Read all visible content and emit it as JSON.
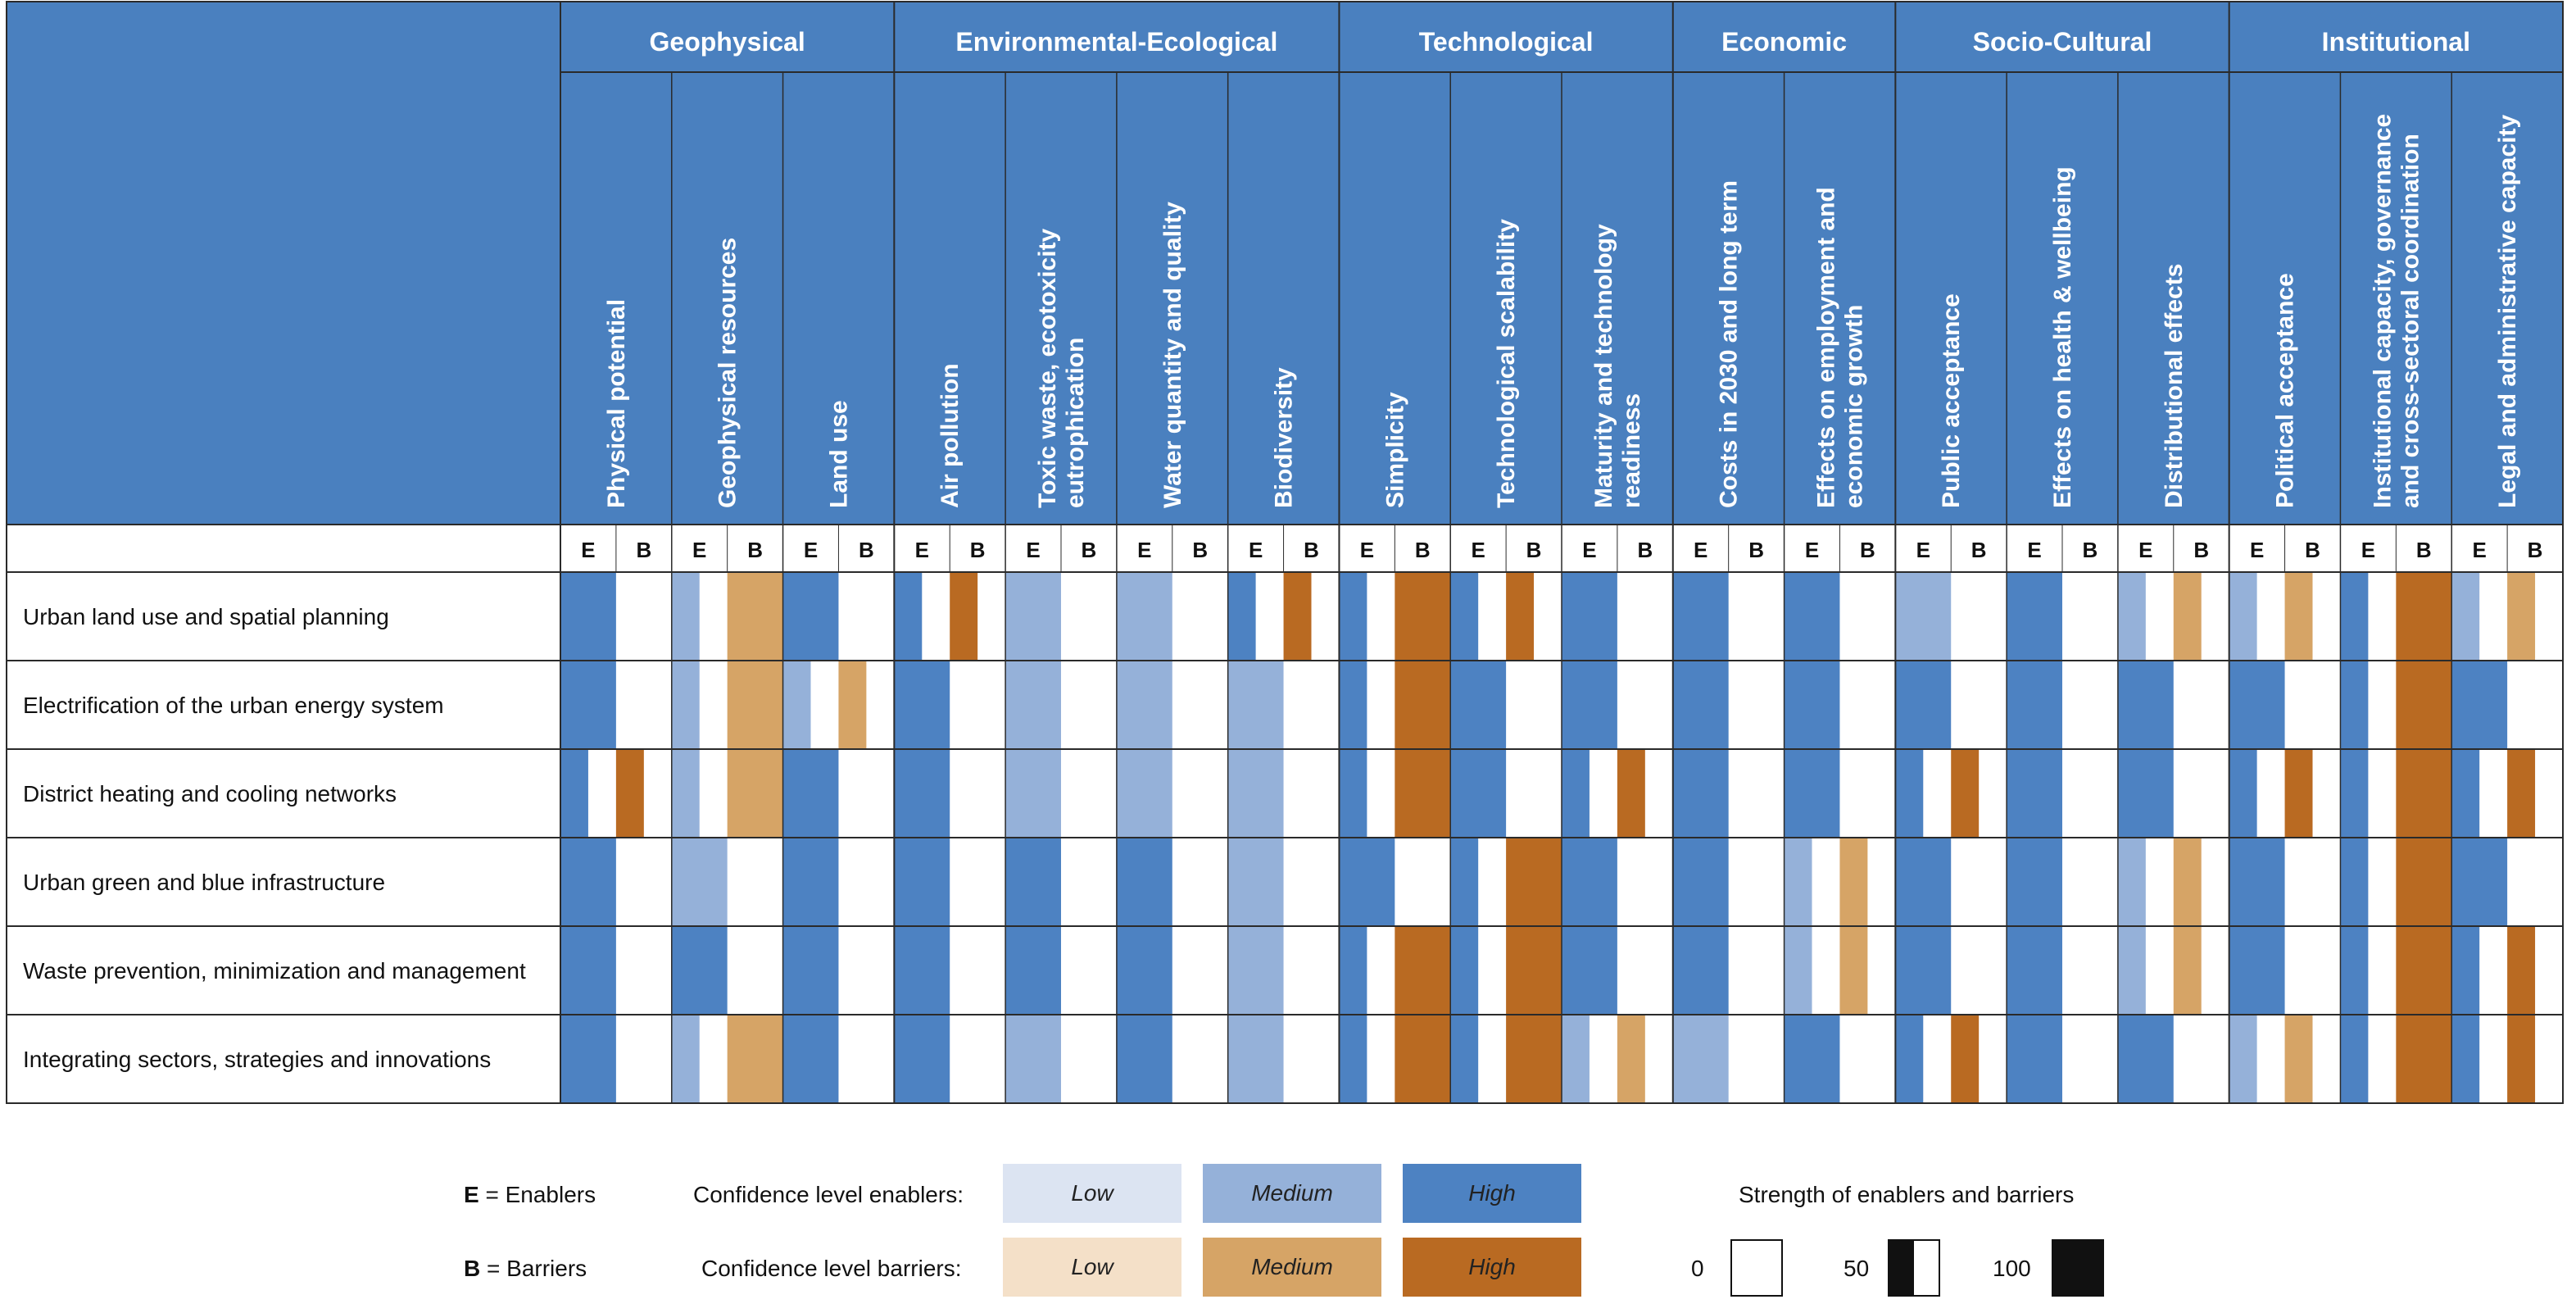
{
  "groups": [
    {
      "name": "Geophysical",
      "span": 3
    },
    {
      "name": "Environmental-Ecological",
      "span": 4
    },
    {
      "name": "Technological",
      "span": 3
    },
    {
      "name": "Economic",
      "span": 2
    },
    {
      "name": "Socio-Cultural",
      "span": 3
    },
    {
      "name": "Institutional",
      "span": 3
    }
  ],
  "columns": [
    [
      "Physical potential"
    ],
    [
      "Geophysical resources"
    ],
    [
      "Land use"
    ],
    [
      "Air pollution"
    ],
    [
      "Toxic waste, ecotoxicity",
      "eutrophication"
    ],
    [
      "Water quantity and quality"
    ],
    [
      "Biodiversity"
    ],
    [
      "Simplicity"
    ],
    [
      "Technological scalability"
    ],
    [
      "Maturity and technology",
      "readiness"
    ],
    [
      "Costs in 2030 and long term"
    ],
    [
      "Effects on employment and",
      "economic growth"
    ],
    [
      "Public acceptance"
    ],
    [
      "Effects on health & wellbeing"
    ],
    [
      "Distributional effects"
    ],
    [
      "Political acceptance"
    ],
    [
      "Institutional capacity, governance",
      "and cross-sectoral coordination"
    ],
    [
      "Legal and administrative capacity"
    ]
  ],
  "eb_labels": {
    "e": "E",
    "b": "B"
  },
  "rows": [
    "Urban land use and spatial planning",
    "Electrification of the urban energy system",
    "District heating and cooling networks",
    "Urban green and blue infrastructure",
    "Waste prevention, minimization and management",
    "Integrating sectors, strategies and innovations"
  ],
  "cells_note": "each cell: [enabler_strength(0|50|100), enabler_confidence(L|M|H|-), barrier_strength, barrier_confidence]",
  "cells": [
    [
      [
        100,
        "H",
        0,
        "-"
      ],
      [
        50,
        "M",
        100,
        "M"
      ],
      [
        100,
        "H",
        0,
        "-"
      ],
      [
        50,
        "H",
        50,
        "H"
      ],
      [
        100,
        "M",
        0,
        "-"
      ],
      [
        100,
        "M",
        0,
        "-"
      ],
      [
        50,
        "H",
        50,
        "H"
      ],
      [
        50,
        "H",
        100,
        "H"
      ],
      [
        50,
        "H",
        50,
        "H"
      ],
      [
        100,
        "H",
        0,
        "-"
      ],
      [
        100,
        "H",
        0,
        "-"
      ],
      [
        100,
        "H",
        0,
        "-"
      ],
      [
        100,
        "M",
        0,
        "-"
      ],
      [
        100,
        "H",
        0,
        "-"
      ],
      [
        50,
        "M",
        50,
        "M"
      ],
      [
        50,
        "M",
        50,
        "M"
      ],
      [
        50,
        "H",
        100,
        "H"
      ],
      [
        50,
        "M",
        50,
        "M"
      ]
    ],
    [
      [
        100,
        "H",
        0,
        "-"
      ],
      [
        50,
        "M",
        100,
        "M"
      ],
      [
        50,
        "M",
        50,
        "M"
      ],
      [
        100,
        "H",
        0,
        "-"
      ],
      [
        100,
        "M",
        0,
        "-"
      ],
      [
        100,
        "M",
        0,
        "-"
      ],
      [
        100,
        "M",
        0,
        "-"
      ],
      [
        50,
        "H",
        100,
        "H"
      ],
      [
        100,
        "H",
        0,
        "-"
      ],
      [
        100,
        "H",
        0,
        "-"
      ],
      [
        100,
        "H",
        0,
        "-"
      ],
      [
        100,
        "H",
        0,
        "-"
      ],
      [
        100,
        "H",
        0,
        "-"
      ],
      [
        100,
        "H",
        0,
        "-"
      ],
      [
        100,
        "H",
        0,
        "-"
      ],
      [
        100,
        "H",
        0,
        "-"
      ],
      [
        50,
        "H",
        100,
        "H"
      ],
      [
        100,
        "H",
        0,
        "-"
      ]
    ],
    [
      [
        50,
        "H",
        50,
        "H"
      ],
      [
        50,
        "M",
        100,
        "M"
      ],
      [
        100,
        "H",
        0,
        "-"
      ],
      [
        100,
        "H",
        0,
        "-"
      ],
      [
        100,
        "M",
        0,
        "-"
      ],
      [
        100,
        "M",
        0,
        "-"
      ],
      [
        100,
        "M",
        0,
        "-"
      ],
      [
        50,
        "H",
        100,
        "H"
      ],
      [
        100,
        "H",
        0,
        "-"
      ],
      [
        50,
        "H",
        50,
        "H"
      ],
      [
        100,
        "H",
        0,
        "-"
      ],
      [
        100,
        "H",
        0,
        "-"
      ],
      [
        50,
        "H",
        50,
        "H"
      ],
      [
        100,
        "H",
        0,
        "-"
      ],
      [
        100,
        "H",
        0,
        "-"
      ],
      [
        50,
        "H",
        50,
        "H"
      ],
      [
        50,
        "H",
        100,
        "H"
      ],
      [
        50,
        "H",
        50,
        "H"
      ]
    ],
    [
      [
        100,
        "H",
        0,
        "-"
      ],
      [
        100,
        "M",
        0,
        "-"
      ],
      [
        100,
        "H",
        0,
        "-"
      ],
      [
        100,
        "H",
        0,
        "-"
      ],
      [
        100,
        "H",
        0,
        "-"
      ],
      [
        100,
        "H",
        0,
        "-"
      ],
      [
        100,
        "M",
        0,
        "-"
      ],
      [
        100,
        "H",
        0,
        "-"
      ],
      [
        50,
        "H",
        100,
        "H"
      ],
      [
        100,
        "H",
        0,
        "-"
      ],
      [
        100,
        "H",
        0,
        "-"
      ],
      [
        50,
        "M",
        50,
        "M"
      ],
      [
        100,
        "H",
        0,
        "-"
      ],
      [
        100,
        "H",
        0,
        "-"
      ],
      [
        50,
        "M",
        50,
        "M"
      ],
      [
        100,
        "H",
        0,
        "-"
      ],
      [
        50,
        "H",
        100,
        "H"
      ],
      [
        100,
        "H",
        0,
        "-"
      ]
    ],
    [
      [
        100,
        "H",
        0,
        "-"
      ],
      [
        100,
        "H",
        0,
        "-"
      ],
      [
        100,
        "H",
        0,
        "-"
      ],
      [
        100,
        "H",
        0,
        "-"
      ],
      [
        100,
        "H",
        0,
        "-"
      ],
      [
        100,
        "H",
        0,
        "-"
      ],
      [
        100,
        "M",
        0,
        "-"
      ],
      [
        50,
        "H",
        100,
        "H"
      ],
      [
        50,
        "H",
        100,
        "H"
      ],
      [
        100,
        "H",
        0,
        "-"
      ],
      [
        100,
        "H",
        0,
        "-"
      ],
      [
        50,
        "M",
        50,
        "M"
      ],
      [
        100,
        "H",
        0,
        "-"
      ],
      [
        100,
        "H",
        0,
        "-"
      ],
      [
        50,
        "M",
        50,
        "M"
      ],
      [
        100,
        "H",
        0,
        "-"
      ],
      [
        50,
        "H",
        100,
        "H"
      ],
      [
        50,
        "H",
        50,
        "H"
      ]
    ],
    [
      [
        100,
        "H",
        0,
        "-"
      ],
      [
        50,
        "M",
        100,
        "M"
      ],
      [
        100,
        "H",
        0,
        "-"
      ],
      [
        100,
        "H",
        0,
        "-"
      ],
      [
        100,
        "M",
        0,
        "-"
      ],
      [
        100,
        "H",
        0,
        "-"
      ],
      [
        100,
        "M",
        0,
        "-"
      ],
      [
        50,
        "H",
        100,
        "H"
      ],
      [
        50,
        "H",
        100,
        "H"
      ],
      [
        50,
        "M",
        50,
        "M"
      ],
      [
        100,
        "M",
        0,
        "-"
      ],
      [
        100,
        "H",
        0,
        "-"
      ],
      [
        50,
        "H",
        50,
        "H"
      ],
      [
        100,
        "H",
        0,
        "-"
      ],
      [
        100,
        "H",
        0,
        "-"
      ],
      [
        50,
        "M",
        50,
        "M"
      ],
      [
        50,
        "H",
        100,
        "H"
      ],
      [
        50,
        "H",
        50,
        "H"
      ]
    ]
  ],
  "colors": {
    "header_bg": "#4a80bf",
    "enabler_low": "#dce4f2",
    "enabler_medium": "#95b1d9",
    "enabler_high": "#4d82c2",
    "barrier_low": "#f4e0c8",
    "barrier_medium": "#d6a466",
    "barrier_high": "#b96a22",
    "grid": "#2a2a2a"
  },
  "legend": {
    "e_key": "E",
    "e_text": " = Enablers",
    "b_key": "B",
    "b_text": " = Barriers",
    "conf_enablers": "Confidence level enablers:",
    "conf_barriers": "Confidence level barriers:",
    "low": "Low",
    "medium": "Medium",
    "high": "High",
    "strength_title": "Strength of enablers and barriers",
    "s0": "0",
    "s50": "50",
    "s100": "100"
  }
}
